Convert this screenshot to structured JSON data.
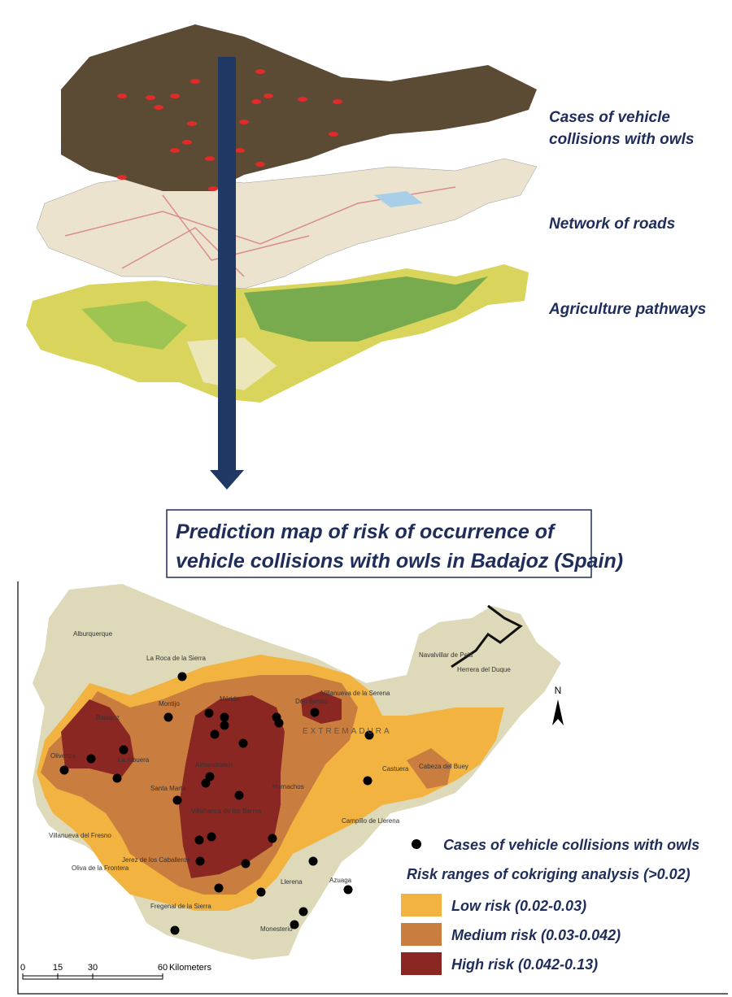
{
  "layers": [
    {
      "label_lines": [
        "Cases of vehicle",
        "collisions with owls"
      ]
    },
    {
      "label_lines": [
        "Network of roads"
      ]
    },
    {
      "label_lines": [
        "Agriculture pathways"
      ]
    }
  ],
  "title_lines": [
    "Prediction map of risk of occurrence of",
    "vehicle collisions with owls in Badajoz (Spain)"
  ],
  "map": {
    "region_label": "EXTREMADURA",
    "towns": [
      "Alburquerque",
      "La Roca de la Sierra",
      "Badajoz",
      "Montijo",
      "Mérida",
      "Don Benito",
      "Villanueva de la Serena",
      "Navalvillar de Pela",
      "Herrera del Duque",
      "Olivenza",
      "La Albuera",
      "Almendralejo",
      "Santa Marta",
      "Villafranca de los Barros",
      "Hornachos",
      "Castuera",
      "Cabeza del Buey",
      "Campillo de Llerena",
      "Villanueva del Fresno",
      "Jerez de los Caballeros",
      "Oliva de la Frontera",
      "Fregenal de la Sierra",
      "Llerena",
      "Azuaga",
      "Monesterio"
    ],
    "north": "N",
    "scale": {
      "ticks": [
        0,
        15,
        30,
        60
      ],
      "unit": "Kilometers"
    }
  },
  "legend": {
    "points": "Cases of vehicle collisions with owls",
    "heading": "Risk ranges of cokriging analysis (>0.02)",
    "ranges": [
      "Low risk (0.02-0.03)",
      "Medium risk (0.03-0.042)",
      "High risk (0.042-0.13)"
    ]
  }
}
